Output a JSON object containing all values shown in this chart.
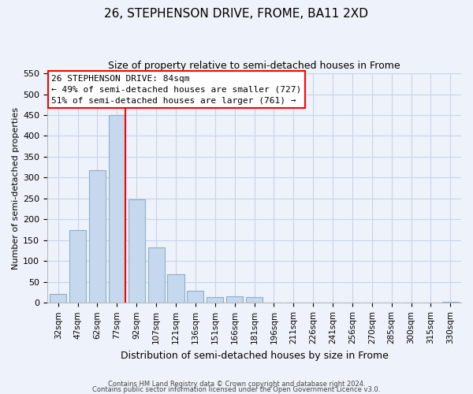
{
  "title": "26, STEPHENSON DRIVE, FROME, BA11 2XD",
  "subtitle": "Size of property relative to semi-detached houses in Frome",
  "xlabel": "Distribution of semi-detached houses by size in Frome",
  "ylabel": "Number of semi-detached properties",
  "bar_color": "#c5d8ed",
  "bar_edge_color": "#8ab0cc",
  "categories": [
    "32sqm",
    "47sqm",
    "62sqm",
    "77sqm",
    "92sqm",
    "107sqm",
    "121sqm",
    "136sqm",
    "151sqm",
    "166sqm",
    "181sqm",
    "196sqm",
    "211sqm",
    "226sqm",
    "241sqm",
    "256sqm",
    "270sqm",
    "285sqm",
    "300sqm",
    "315sqm",
    "330sqm"
  ],
  "values": [
    22,
    175,
    318,
    450,
    248,
    133,
    68,
    29,
    14,
    15,
    14,
    0,
    0,
    0,
    0,
    0,
    0,
    0,
    0,
    0,
    2
  ],
  "ylim": [
    0,
    550
  ],
  "yticks": [
    0,
    50,
    100,
    150,
    200,
    250,
    300,
    350,
    400,
    450,
    500,
    550
  ],
  "annotation_title": "26 STEPHENSON DRIVE: 84sqm",
  "annotation_line1": "← 49% of semi-detached houses are smaller (727)",
  "annotation_line2": "51% of semi-detached houses are larger (761) →",
  "footer1": "Contains HM Land Registry data © Crown copyright and database right 2024.",
  "footer2": "Contains public sector information licensed under the Open Government Licence v3.0.",
  "background_color": "#eef2fa",
  "plot_background": "#eef2fa",
  "grid_color": "#c8d4e8"
}
